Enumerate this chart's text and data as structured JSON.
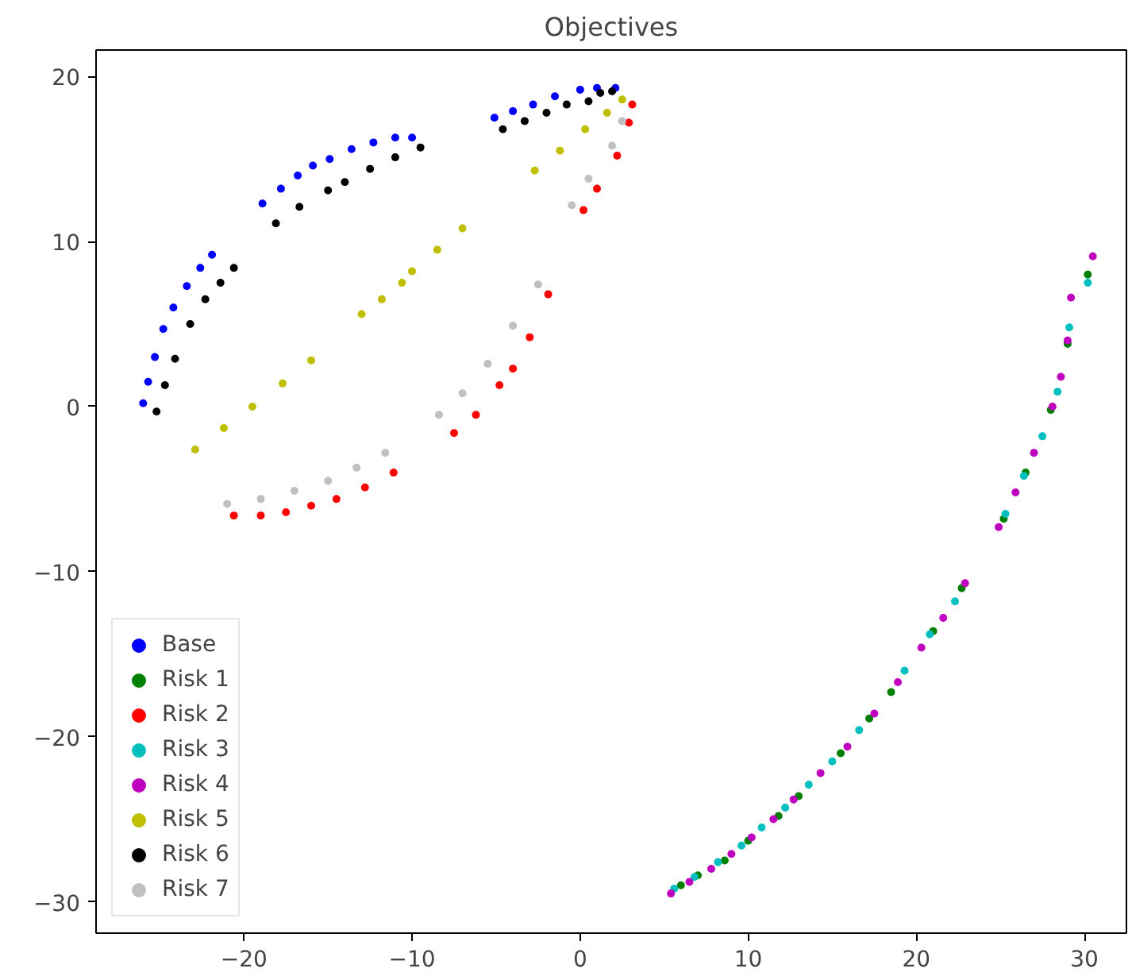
{
  "chart_data": {
    "type": "scatter",
    "title": "Objectives",
    "xlim": [
      -28.8,
      32.5
    ],
    "ylim": [
      -31.9,
      21.6
    ],
    "xticks": [
      -20,
      -10,
      0,
      10,
      20,
      30
    ],
    "yticks": [
      -30,
      -20,
      -10,
      0,
      10,
      20
    ],
    "grid": false,
    "legend": "bottom left",
    "marker": "circle",
    "series": [
      {
        "name": "Base",
        "color": "#0000ff",
        "x": [
          -26.0,
          -25.7,
          -25.3,
          -24.8,
          -24.2,
          -23.4,
          -22.6,
          -21.9,
          -18.9,
          -17.8,
          -16.8,
          -15.9,
          -14.9,
          -13.6,
          -12.3,
          -11.0,
          -10.0,
          -5.1,
          -4.0,
          -2.8,
          -1.5,
          0.0,
          1.0,
          2.1
        ],
        "values": [
          0.2,
          1.5,
          3.0,
          4.7,
          6.0,
          7.3,
          8.4,
          9.2,
          12.3,
          13.2,
          14.0,
          14.6,
          15.0,
          15.6,
          16.0,
          16.3,
          16.3,
          17.5,
          17.9,
          18.3,
          18.8,
          19.2,
          19.3,
          19.3
        ]
      },
      {
        "name": "Risk 1",
        "color": "#008000",
        "x": [
          6.0,
          7.0,
          8.6,
          10.0,
          11.8,
          13.0,
          15.5,
          17.2,
          18.5,
          21.0,
          22.7,
          25.2,
          26.5,
          28.0,
          29.0,
          30.2
        ],
        "values": [
          -29.0,
          -28.4,
          -27.5,
          -26.3,
          -24.8,
          -23.6,
          -21.0,
          -18.9,
          -17.3,
          -13.6,
          -11.0,
          -6.8,
          -4.0,
          -0.2,
          3.8,
          8.0
        ]
      },
      {
        "name": "Risk 2",
        "color": "#ff0000",
        "x": [
          -20.6,
          -19.0,
          -17.5,
          -16.0,
          -14.5,
          -12.8,
          -11.1,
          -7.5,
          -6.2,
          -4.8,
          -4.0,
          -3.0,
          -1.9,
          0.2,
          1.0,
          2.2,
          2.9,
          3.1
        ],
        "values": [
          -6.6,
          -6.6,
          -6.4,
          -6.0,
          -5.6,
          -4.9,
          -4.0,
          -1.6,
          -0.5,
          1.3,
          2.3,
          4.2,
          6.8,
          11.9,
          13.2,
          15.2,
          17.2,
          18.3
        ]
      },
      {
        "name": "Risk 3",
        "color": "#00bfbf",
        "x": [
          5.6,
          6.8,
          8.2,
          9.6,
          10.8,
          12.2,
          13.6,
          15.0,
          16.6,
          19.3,
          20.8,
          22.3,
          25.3,
          26.4,
          27.5,
          28.4,
          29.1,
          30.2
        ],
        "values": [
          -29.2,
          -28.5,
          -27.6,
          -26.6,
          -25.5,
          -24.3,
          -22.9,
          -21.5,
          -19.6,
          -16.0,
          -13.8,
          -11.8,
          -6.5,
          -4.2,
          -1.8,
          0.9,
          4.8,
          7.5
        ]
      },
      {
        "name": "Risk 4",
        "color": "#bf00bf",
        "x": [
          5.4,
          6.5,
          7.8,
          9.0,
          10.2,
          11.5,
          12.7,
          14.3,
          15.9,
          17.5,
          18.9,
          20.3,
          21.6,
          22.9,
          24.9,
          25.9,
          27.0,
          28.1,
          28.6,
          29.0,
          29.2,
          30.5
        ],
        "values": [
          -29.5,
          -28.8,
          -28.0,
          -27.1,
          -26.1,
          -25.0,
          -23.8,
          -22.2,
          -20.6,
          -18.6,
          -16.7,
          -14.6,
          -12.8,
          -10.7,
          -7.3,
          -5.2,
          -2.8,
          0.0,
          1.8,
          4.0,
          6.6,
          9.1
        ]
      },
      {
        "name": "Risk 5",
        "color": "#bfbf00",
        "x": [
          -22.9,
          -21.2,
          -19.5,
          -17.7,
          -16.0,
          -13.0,
          -11.8,
          -10.6,
          -10.0,
          -8.5,
          -7.0,
          -2.7,
          -1.2,
          0.3,
          1.6,
          2.5
        ],
        "values": [
          -2.6,
          -1.3,
          0.0,
          1.4,
          2.8,
          5.6,
          6.5,
          7.5,
          8.2,
          9.5,
          10.8,
          14.3,
          15.5,
          16.8,
          17.8,
          18.6
        ]
      },
      {
        "name": "Risk 6",
        "color": "#000000",
        "x": [
          -25.2,
          -24.7,
          -24.1,
          -23.2,
          -22.3,
          -21.4,
          -20.6,
          -18.1,
          -16.7,
          -15.0,
          -14.0,
          -12.5,
          -11.0,
          -9.5,
          -4.6,
          -3.3,
          -2.0,
          -0.8,
          0.5,
          1.2,
          1.9
        ],
        "values": [
          -0.3,
          1.3,
          2.9,
          5.0,
          6.5,
          7.5,
          8.4,
          11.1,
          12.1,
          13.1,
          13.6,
          14.4,
          15.1,
          15.7,
          16.8,
          17.3,
          17.8,
          18.3,
          18.5,
          19.0,
          19.1
        ]
      },
      {
        "name": "Risk 7",
        "color": "#c0c0c0",
        "x": [
          -21.0,
          -19.0,
          -17.0,
          -15.0,
          -13.3,
          -11.6,
          -8.4,
          -7.0,
          -5.5,
          -4.0,
          -2.5,
          -0.5,
          0.5,
          1.9,
          2.5
        ],
        "values": [
          -5.9,
          -5.6,
          -5.1,
          -4.5,
          -3.7,
          -2.8,
          -0.5,
          0.8,
          2.6,
          4.9,
          7.4,
          12.2,
          13.8,
          15.8,
          17.3
        ]
      }
    ]
  }
}
